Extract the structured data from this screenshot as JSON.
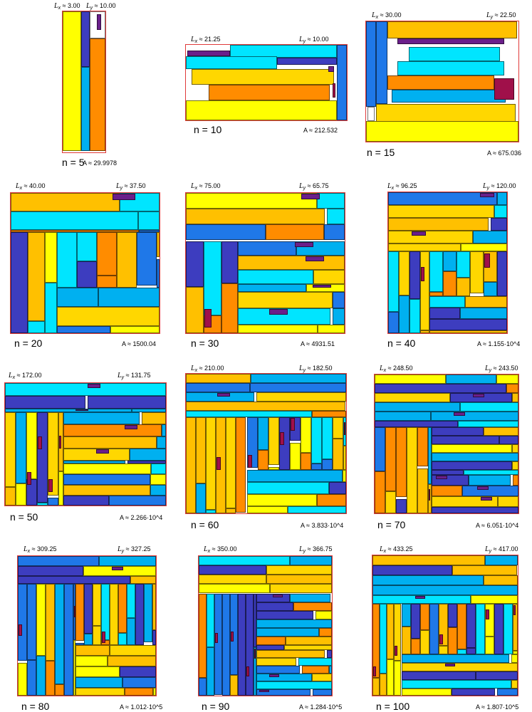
{
  "colors": {
    "yellow": "#ffff00",
    "gold": "#ffd700",
    "amber": "#ffc000",
    "orange": "#ff8c00",
    "cyan": "#00e5ff",
    "sky": "#00b0f0",
    "blue": "#1f78e8",
    "indigo": "#3d3dbf",
    "purple": "#6a1f8a",
    "crimson": "#a0104a",
    "frame": "#e03a3a"
  },
  "panels": [
    {
      "n": "n = 5",
      "A": "A ≈ 29.9978",
      "lx": "3.00",
      "ly": "10.00"
    },
    {
      "n": "n = 10",
      "A": "A ≈ 212.532",
      "lx": "21.25",
      "ly": "10.00"
    },
    {
      "n": "n = 15",
      "A": "A ≈ 675.036",
      "lx": "30.00",
      "ly": "22.50"
    },
    {
      "n": "n = 20",
      "A": "A ≈ 1500.04",
      "lx": "40.00",
      "ly": "37.50"
    },
    {
      "n": "n = 30",
      "A": "A ≈ 4931.51",
      "lx": "75.00",
      "ly": "65.75"
    },
    {
      "n": "n = 40",
      "A": "A ≈ 1.155·10^4",
      "lx": "96.25",
      "ly": "120.00"
    },
    {
      "n": "n = 50",
      "A": "A ≈ 2.266·10^4",
      "lx": "172.00",
      "ly": "131.75"
    },
    {
      "n": "n = 60",
      "A": "A ≈ 3.833·10^4",
      "lx": "210.00",
      "ly": "182.50"
    },
    {
      "n": "n = 70",
      "A": "A ≈ 6.051·10^4",
      "lx": "248.50",
      "ly": "243.50"
    },
    {
      "n": "n = 80",
      "A": "A ≈ 1.012·10^5",
      "lx": "309.25",
      "ly": "327.25"
    },
    {
      "n": "n = 90",
      "A": "A ≈ 1.284·10^5",
      "lx": "350.00",
      "ly": "366.75"
    },
    {
      "n": "n = 100",
      "A": "A ≈ 1.807·10^5",
      "lx": "433.25",
      "ly": "417.00"
    }
  ]
}
